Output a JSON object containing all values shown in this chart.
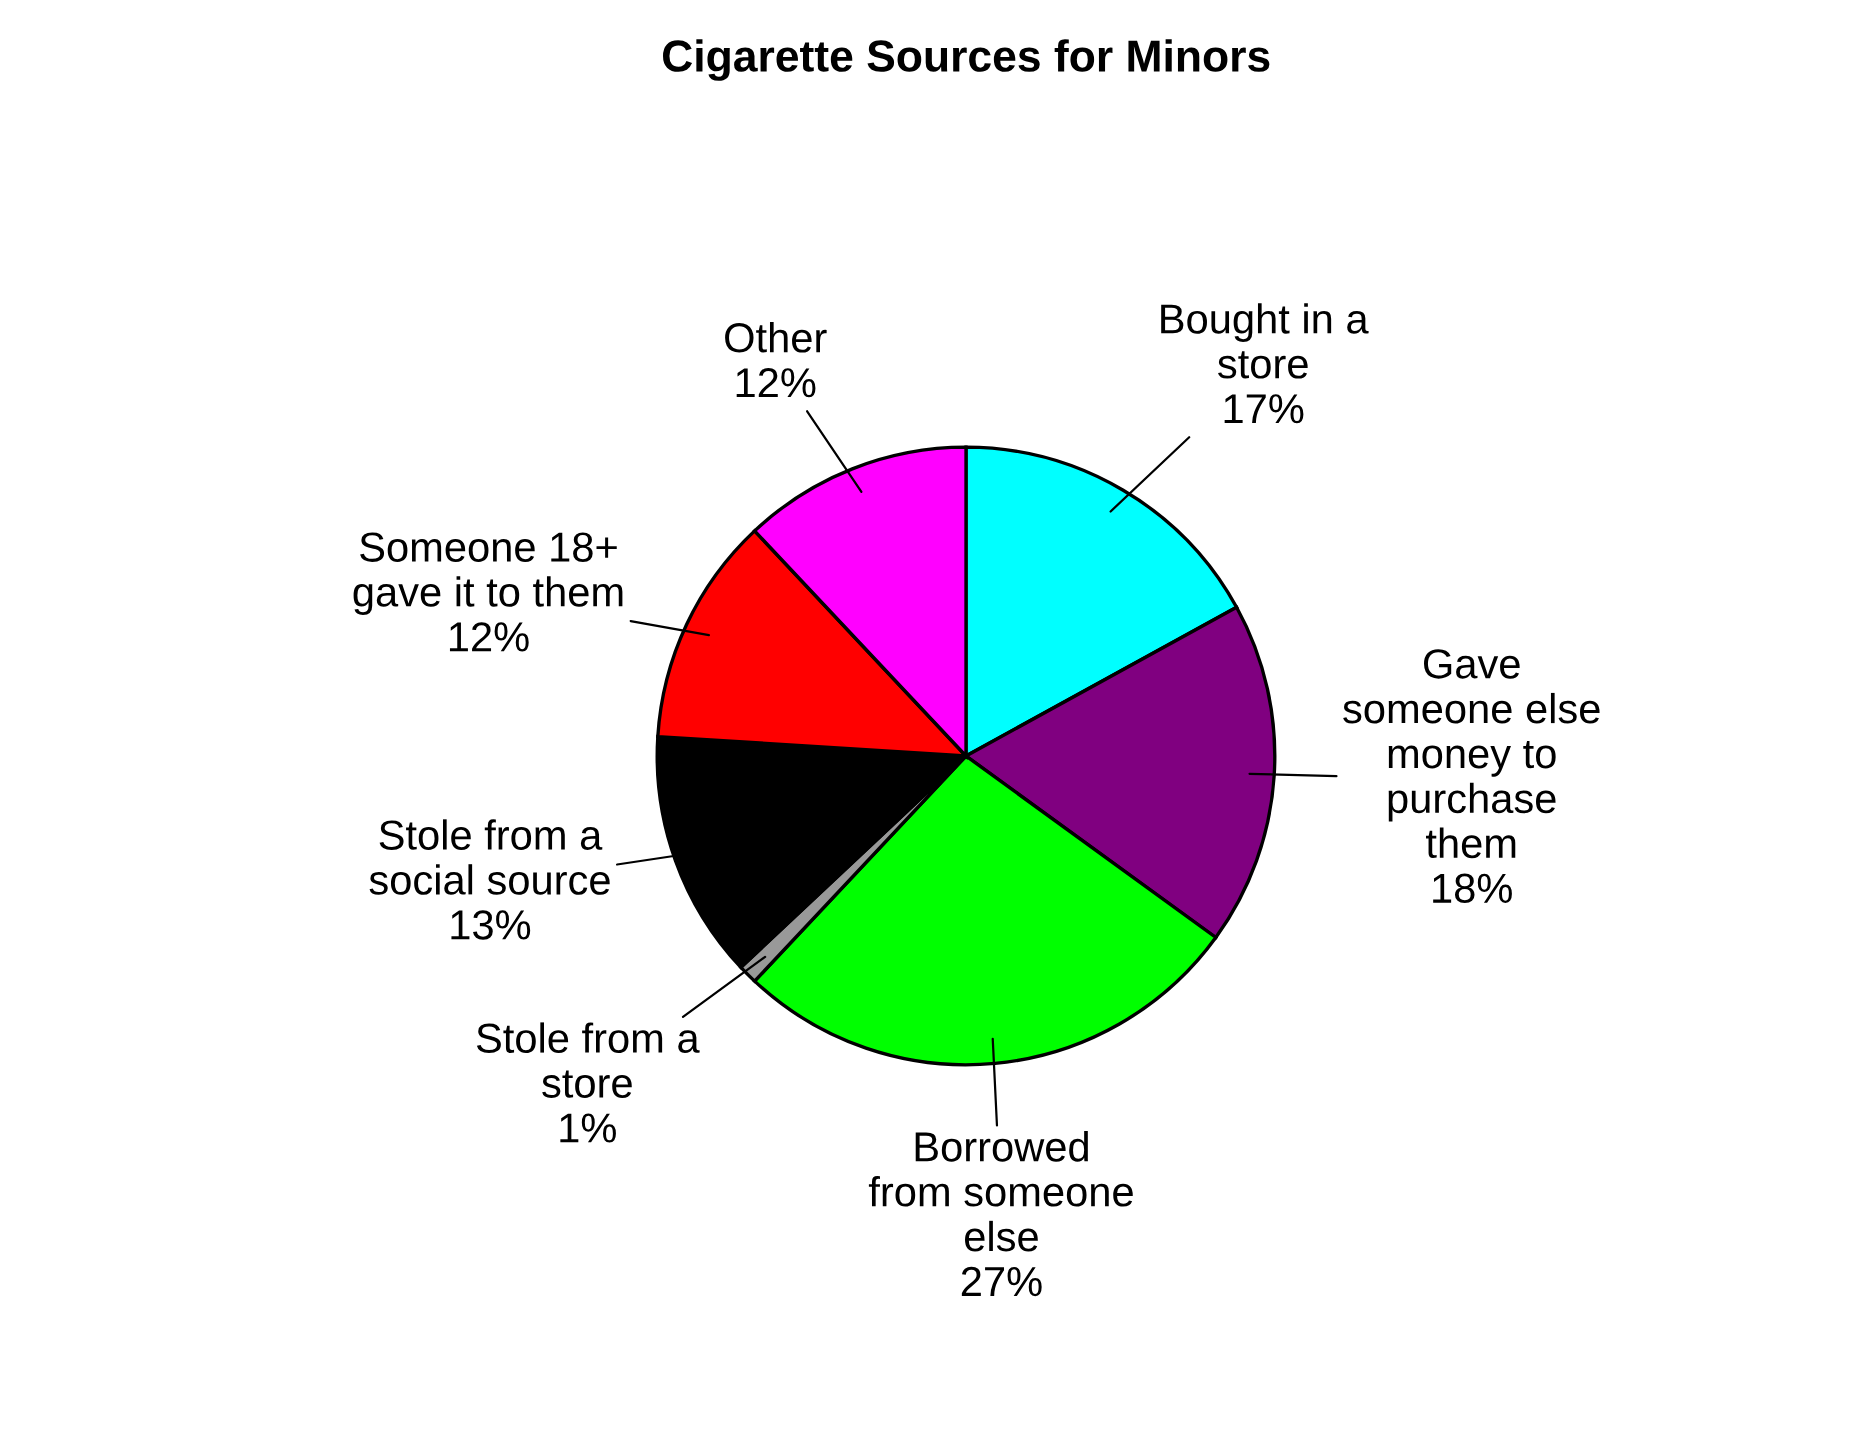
{
  "chart_data": {
    "type": "pie",
    "title": "Cigarette Sources for Minors",
    "categories": [
      "Bought in a\nstore",
      "Gave\nsomeone else\nmoney to\npurchase\nthem",
      "Borrowed\nfrom someone\nelse",
      "Stole from a\nstore",
      "Stole from a\nsocial source",
      "Someone 18+\ngave it to them",
      "Other"
    ],
    "values": [
      17,
      18,
      27,
      1,
      13,
      12,
      12
    ],
    "colors": [
      "#00ffff",
      "#800080",
      "#00ff00",
      "#999999",
      "#000000",
      "#ff0000",
      "#ff00ff"
    ],
    "value_labels": [
      "17%",
      "18%",
      "27%",
      "1%",
      "13%",
      "12%",
      "12%"
    ],
    "legend": false
  }
}
